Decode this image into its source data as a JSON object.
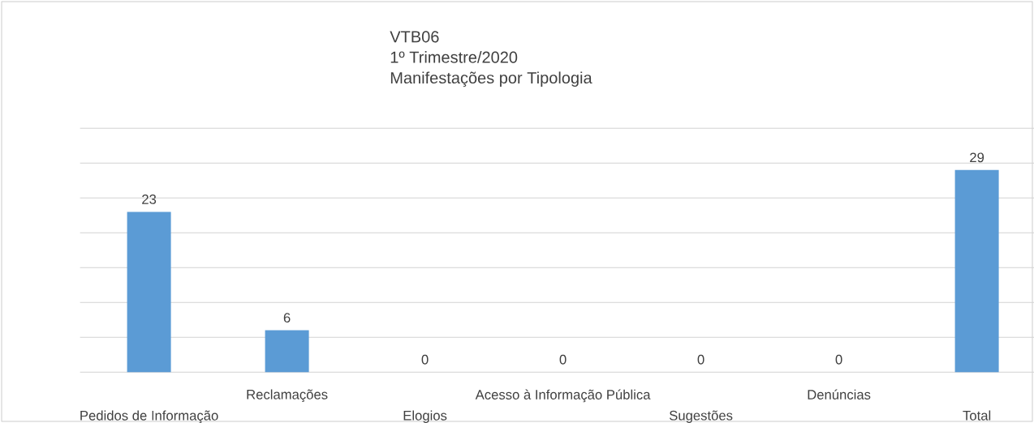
{
  "chart_data": {
    "type": "bar",
    "title": "VTB06",
    "subtitle": "1º Trimestre/2020",
    "annotations": [
      "Manifestações por Tipologia"
    ],
    "categories": [
      "Pedidos de Informação",
      "Reclamações",
      "Elogios",
      "Acesso à Informação Pública",
      "Sugestões",
      "Denúncias",
      "Total"
    ],
    "values": [
      23,
      6,
      0,
      0,
      0,
      0,
      29
    ],
    "color": "#5b9bd5",
    "ylim": [
      0,
      35
    ],
    "yticks": [
      {
        "value": 0,
        "label": null
      },
      {
        "value": 5,
        "label": null
      },
      {
        "value": 10,
        "label": null
      },
      {
        "value": 15,
        "label": null
      },
      {
        "value": 20,
        "label": null
      },
      {
        "value": 25,
        "label": null
      },
      {
        "value": 30,
        "label": null
      },
      {
        "value": 35,
        "label": null
      }
    ],
    "grid": "y",
    "data_labels": true,
    "tick_labels": "x"
  }
}
